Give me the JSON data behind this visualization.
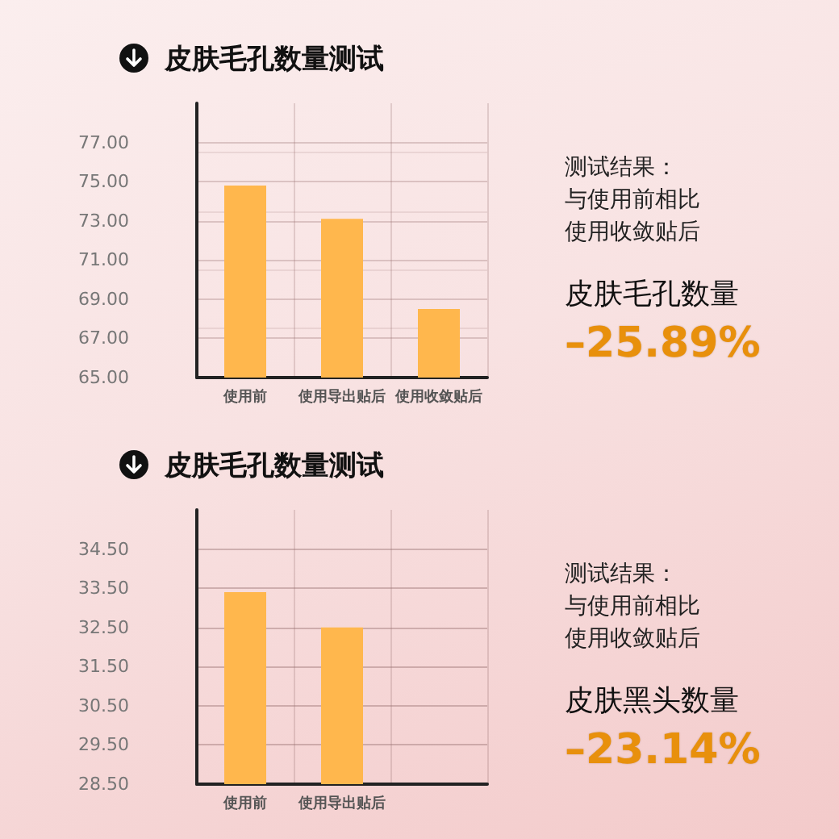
{
  "chart_data": [
    {
      "type": "bar",
      "title": "皮肤毛孔数量测试",
      "annotations": [
        "测试结果：",
        "与使用前相比",
        "使用收敛贴后",
        "皮肤毛孔数量",
        "–25.89%"
      ],
      "categories": [
        "使用前",
        "使用导出贴后",
        "使用收敛贴后"
      ],
      "values": [
        74.8,
        73.1,
        68.5
      ],
      "color": "#ffb74d",
      "ylim": [
        65,
        79
      ],
      "yticks": [
        {
          "value": 65,
          "label": "65.00"
        },
        {
          "value": 67,
          "label": "67.00"
        },
        {
          "value": 69,
          "label": "69.00"
        },
        {
          "value": 71,
          "label": "71.00"
        },
        {
          "value": 73,
          "label": "73.00"
        },
        {
          "value": 75,
          "label": "75.00"
        },
        {
          "value": 77,
          "label": "77.00"
        }
      ],
      "grid": true
    },
    {
      "type": "bar",
      "title": "皮肤毛孔数量测试",
      "annotations": [
        "测试结果：",
        "与使用前相比",
        "使用收敛贴后",
        "皮肤黑头数量",
        "–23.14%"
      ],
      "categories": [
        "使用前",
        "使用导出贴后",
        null
      ],
      "values": [
        33.4,
        32.5,
        null
      ],
      "color": "#ffb74d",
      "ylim": [
        28.5,
        35.5
      ],
      "yticks": [
        {
          "value": 28.5,
          "label": "28.50"
        },
        {
          "value": 29.5,
          "label": "29.50"
        },
        {
          "value": 30.5,
          "label": "30.50"
        },
        {
          "value": 31.5,
          "label": "31.50"
        },
        {
          "value": 32.5,
          "label": "32.50"
        },
        {
          "value": 33.5,
          "label": "33.50"
        },
        {
          "value": 34.5,
          "label": "34.50"
        }
      ],
      "grid": true
    }
  ]
}
